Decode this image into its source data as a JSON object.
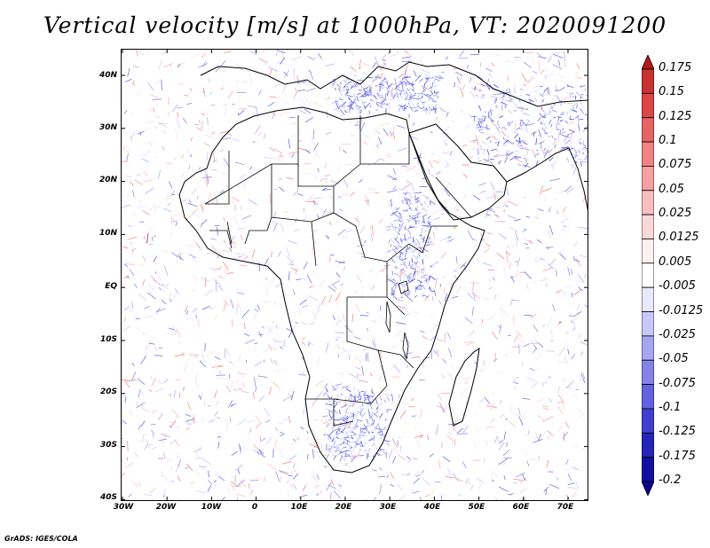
{
  "title": "Vertical velocity [m/s] at 1000hPa, VT: 2020091200",
  "lat_labels": [
    "40N",
    "30N",
    "20N",
    "10N",
    "EQ",
    "10S",
    "20S",
    "30S",
    "40S"
  ],
  "lon_labels": [
    "30W",
    "20W",
    "10W",
    "0",
    "10E",
    "20E",
    "30E",
    "40E",
    "50E",
    "60E",
    "70E"
  ],
  "colorbar": {
    "labels": [
      "0.175",
      "0.15",
      "0.125",
      "0.1",
      "0.075",
      "0.05",
      "0.025",
      "0.0125",
      "0.005",
      "-0.005",
      "-0.0125",
      "-0.025",
      "-0.05",
      "-0.075",
      "-0.1",
      "-0.125",
      "-0.175",
      "-0.2"
    ],
    "colors": [
      "#b01a1a",
      "#c83232",
      "#dc4646",
      "#e66464",
      "#f08282",
      "#f4a0a0",
      "#f8bebe",
      "#fad8d8",
      "#fdf0f0",
      "#ffffff",
      "#e8e8ff",
      "#c8c8f8",
      "#a6a6f0",
      "#8484e8",
      "#6262e0",
      "#4040d0",
      "#2424b8",
      "#1010a0",
      "#08088c"
    ]
  },
  "credit": "GrADS: IGES/COLA"
}
